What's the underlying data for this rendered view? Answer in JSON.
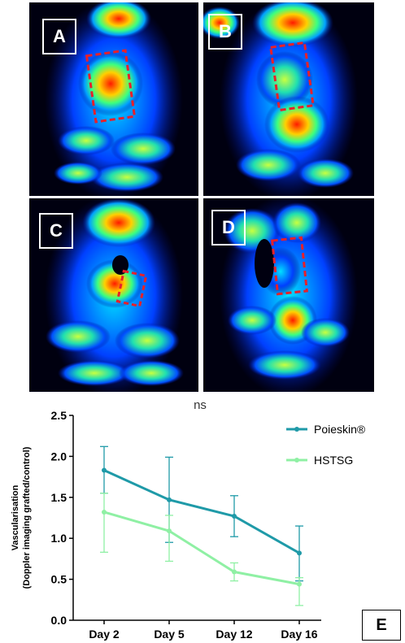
{
  "panels": [
    {
      "label": "A"
    },
    {
      "label": "B"
    },
    {
      "label": "C"
    },
    {
      "label": "D"
    }
  ],
  "colors": {
    "roi": "#e8202a",
    "poieskin": "#1f9aa8",
    "hstsg": "#8ff0a4"
  },
  "figure_label": "E",
  "chart_data": {
    "type": "line",
    "title": "ns",
    "ylabel_line1": "Vascularisation",
    "ylabel_line2": "(Doppler imaging grafted/control)",
    "xlabel": "",
    "categories": [
      "Day 2",
      "Day 5",
      "Day 12",
      "Day 16"
    ],
    "ylim": [
      0,
      2.5
    ],
    "yticks": [
      "0.0",
      "0.5",
      "1.0",
      "1.5",
      "2.0",
      "2.5"
    ],
    "grid": false,
    "legend_position": "top-right",
    "series": [
      {
        "name": "Poieskin®",
        "color": "#1f9aa8",
        "values": [
          1.83,
          1.47,
          1.27,
          0.82
        ],
        "err_low": [
          1.55,
          0.95,
          1.02,
          0.48
        ],
        "err_high": [
          2.12,
          1.99,
          1.52,
          1.15
        ]
      },
      {
        "name": "HSTSG",
        "color": "#8ff0a4",
        "values": [
          1.32,
          1.09,
          0.59,
          0.44
        ],
        "err_low": [
          0.83,
          0.72,
          0.48,
          0.18
        ],
        "err_high": [
          1.55,
          1.28,
          0.7,
          0.52
        ]
      }
    ]
  }
}
